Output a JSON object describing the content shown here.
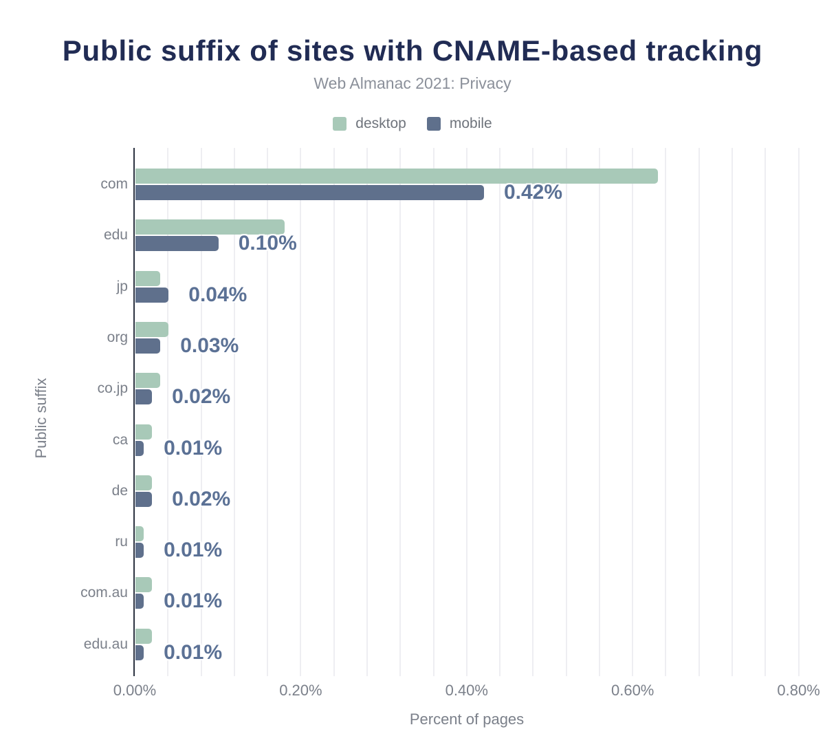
{
  "header": {
    "title": "Public suffix of sites with CNAME-based tracking",
    "subtitle": "Web Almanac 2021: Privacy"
  },
  "legend": [
    {
      "label": "desktop",
      "color": "#a8c9b8"
    },
    {
      "label": "mobile",
      "color": "#5f708c"
    }
  ],
  "colors": {
    "title": "#212c54",
    "subtitle": "#8b909a",
    "axis_line": "#2b3240",
    "gridline": "#eeeef2",
    "axis_text": "#7b808a",
    "value_label": "#5b7195",
    "desktop_bar": "#a8c9b8",
    "mobile_bar": "#5f708c"
  },
  "chart_data": {
    "type": "bar",
    "orientation": "horizontal",
    "title": "Public suffix of sites with CNAME-based tracking",
    "subtitle": "Web Almanac 2021: Privacy",
    "categories": [
      "com",
      "edu",
      "jp",
      "org",
      "co.jp",
      "ca",
      "de",
      "ru",
      "com.au",
      "edu.au"
    ],
    "series": [
      {
        "name": "desktop",
        "color": "#a8c9b8",
        "values": [
          0.63,
          0.18,
          0.03,
          0.04,
          0.03,
          0.02,
          0.02,
          0.01,
          0.02,
          0.02
        ]
      },
      {
        "name": "mobile",
        "color": "#5f708c",
        "values": [
          0.42,
          0.1,
          0.04,
          0.03,
          0.02,
          0.01,
          0.02,
          0.01,
          0.01,
          0.01
        ]
      }
    ],
    "value_labels": [
      "0.42%",
      "0.10%",
      "0.04%",
      "0.03%",
      "0.02%",
      "0.01%",
      "0.02%",
      "0.01%",
      "0.01%",
      "0.01%"
    ],
    "value_labels_series": "mobile",
    "xlabel": "Percent of pages",
    "ylabel": "Public suffix",
    "x_ticks": [
      "0.00%",
      "0.20%",
      "0.40%",
      "0.60%",
      "0.80%"
    ],
    "x_tick_values": [
      0.0,
      0.2,
      0.4,
      0.6,
      0.8
    ],
    "xlim": [
      0,
      0.82
    ],
    "grid_step": 0.04,
    "grid": true,
    "legend_position": "top"
  }
}
